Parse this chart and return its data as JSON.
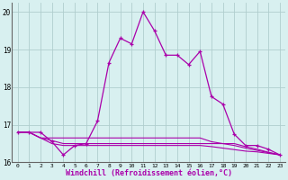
{
  "x": [
    0,
    1,
    2,
    3,
    4,
    5,
    6,
    7,
    8,
    9,
    10,
    11,
    12,
    13,
    14,
    15,
    16,
    17,
    18,
    19,
    20,
    21,
    22,
    23
  ],
  "line1": [
    16.8,
    16.8,
    16.8,
    16.55,
    16.2,
    16.45,
    16.5,
    17.1,
    18.65,
    19.3,
    19.15,
    20.0,
    19.5,
    18.85,
    18.85,
    18.6,
    18.95,
    17.75,
    17.55,
    16.75,
    16.45,
    16.45,
    16.35,
    16.2
  ],
  "line2": [
    16.8,
    16.8,
    16.65,
    16.65,
    16.65,
    16.65,
    16.65,
    16.65,
    16.65,
    16.65,
    16.65,
    16.65,
    16.65,
    16.65,
    16.65,
    16.65,
    16.65,
    16.55,
    16.5,
    16.45,
    16.38,
    16.32,
    16.26,
    16.2
  ],
  "line3": [
    16.8,
    16.8,
    16.65,
    16.5,
    16.45,
    16.45,
    16.45,
    16.45,
    16.45,
    16.45,
    16.45,
    16.45,
    16.45,
    16.45,
    16.45,
    16.45,
    16.45,
    16.42,
    16.38,
    16.34,
    16.3,
    16.28,
    16.24,
    16.2
  ],
  "line4": [
    16.8,
    16.8,
    16.65,
    16.58,
    16.5,
    16.5,
    16.5,
    16.5,
    16.5,
    16.5,
    16.5,
    16.5,
    16.5,
    16.5,
    16.5,
    16.5,
    16.5,
    16.5,
    16.5,
    16.5,
    16.42,
    16.35,
    16.27,
    16.2
  ],
  "line_color": "#aa00aa",
  "bg_color": "#d8f0f0",
  "grid_color": "#b0cece",
  "xlabel": "Windchill (Refroidissement éolien,°C)",
  "ylim": [
    16.0,
    20.25
  ],
  "xlim": [
    -0.5,
    23.5
  ],
  "yticks": [
    16,
    17,
    18,
    19,
    20
  ],
  "xticks": [
    0,
    1,
    2,
    3,
    4,
    5,
    6,
    7,
    8,
    9,
    10,
    11,
    12,
    13,
    14,
    15,
    16,
    17,
    18,
    19,
    20,
    21,
    22,
    23
  ]
}
